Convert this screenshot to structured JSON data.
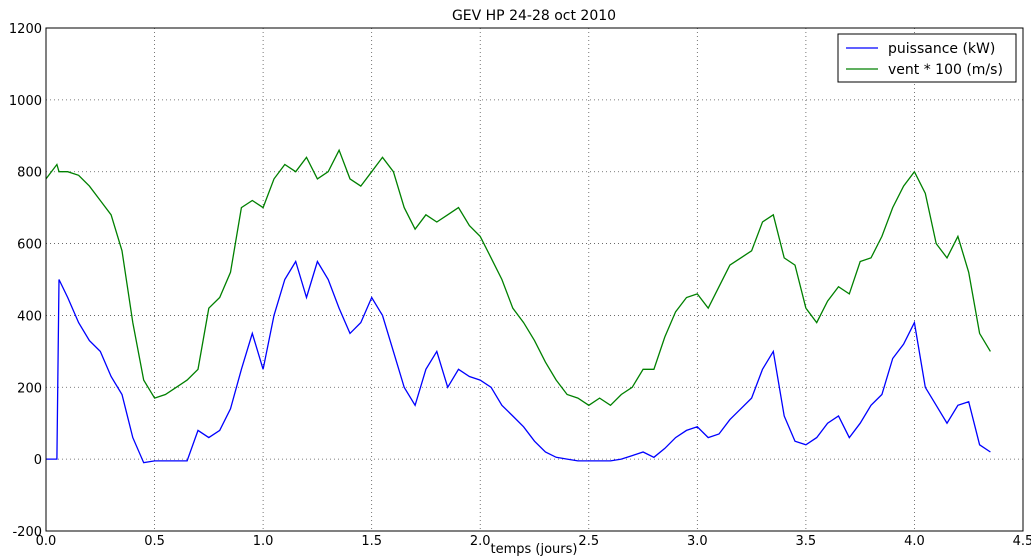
{
  "chart_data": {
    "type": "line",
    "title": "GEV HP 24-28 oct 2010",
    "x_label": "temps (jours)",
    "x": [
      0,
      0.05,
      0.06,
      0.1,
      0.15,
      0.2,
      0.25,
      0.3,
      0.35,
      0.4,
      0.45,
      0.5,
      0.55,
      0.6,
      0.65,
      0.7,
      0.75,
      0.8,
      0.85,
      0.9,
      0.95,
      1.0,
      1.05,
      1.1,
      1.15,
      1.2,
      1.25,
      1.3,
      1.35,
      1.4,
      1.45,
      1.5,
      1.55,
      1.6,
      1.65,
      1.7,
      1.75,
      1.8,
      1.85,
      1.9,
      1.95,
      2.0,
      2.05,
      2.1,
      2.15,
      2.2,
      2.25,
      2.3,
      2.35,
      2.4,
      2.45,
      2.5,
      2.55,
      2.6,
      2.65,
      2.7,
      2.75,
      2.8,
      2.85,
      2.9,
      2.95,
      3.0,
      3.05,
      3.1,
      3.15,
      3.2,
      3.25,
      3.3,
      3.35,
      3.4,
      3.45,
      3.5,
      3.55,
      3.6,
      3.65,
      3.7,
      3.75,
      3.8,
      3.85,
      3.9,
      3.95,
      4.0,
      4.05,
      4.1,
      4.15,
      4.2,
      4.25,
      4.3,
      4.35
    ],
    "series": [
      {
        "name": "puissance (kW)",
        "color": "#0000ff",
        "values": [
          0,
          0,
          500,
          450,
          380,
          330,
          300,
          230,
          180,
          60,
          -10,
          -5,
          -5,
          -5,
          -5,
          80,
          60,
          80,
          140,
          250,
          350,
          250,
          400,
          500,
          550,
          450,
          550,
          500,
          420,
          350,
          380,
          450,
          400,
          300,
          200,
          150,
          250,
          300,
          200,
          250,
          230,
          220,
          200,
          150,
          120,
          90,
          50,
          20,
          5,
          0,
          -5,
          -5,
          -5,
          -5,
          0,
          10,
          20,
          5,
          30,
          60,
          80,
          90,
          60,
          70,
          110,
          140,
          170,
          250,
          300,
          120,
          50,
          40,
          60,
          100,
          120,
          60,
          100,
          150,
          180,
          280,
          320,
          380,
          200,
          150,
          100,
          150,
          160,
          40,
          20
        ]
      },
      {
        "name": "vent * 100 (m/s)",
        "color": "#008000",
        "values": [
          780,
          820,
          800,
          800,
          790,
          760,
          720,
          680,
          580,
          380,
          220,
          170,
          180,
          200,
          220,
          250,
          420,
          450,
          520,
          700,
          720,
          700,
          780,
          820,
          800,
          840,
          780,
          800,
          860,
          780,
          760,
          800,
          840,
          800,
          700,
          640,
          680,
          660,
          680,
          700,
          650,
          620,
          560,
          500,
          420,
          380,
          330,
          270,
          220,
          180,
          170,
          150,
          170,
          150,
          180,
          200,
          250,
          250,
          340,
          410,
          450,
          460,
          420,
          480,
          540,
          560,
          580,
          660,
          680,
          560,
          540,
          420,
          380,
          440,
          480,
          460,
          550,
          560,
          620,
          700,
          760,
          800,
          740,
          600,
          560,
          620,
          520,
          350,
          300
        ]
      }
    ],
    "xlim": [
      0,
      4.5
    ],
    "xticks": [
      {
        "value": 0,
        "label": "0.0"
      },
      0.5,
      {
        "value": 1,
        "label": "1.0"
      },
      1.5,
      {
        "value": 2,
        "label": "2.0"
      },
      2.5,
      {
        "value": 3,
        "label": "3.0"
      },
      3.5,
      {
        "value": 4,
        "label": "4.0"
      },
      4.5
    ],
    "ylim": [
      -200,
      1200
    ],
    "yticks": [
      -200,
      0,
      200,
      400,
      600,
      800,
      1000,
      1200
    ],
    "grid": true,
    "legend": "upper right"
  }
}
